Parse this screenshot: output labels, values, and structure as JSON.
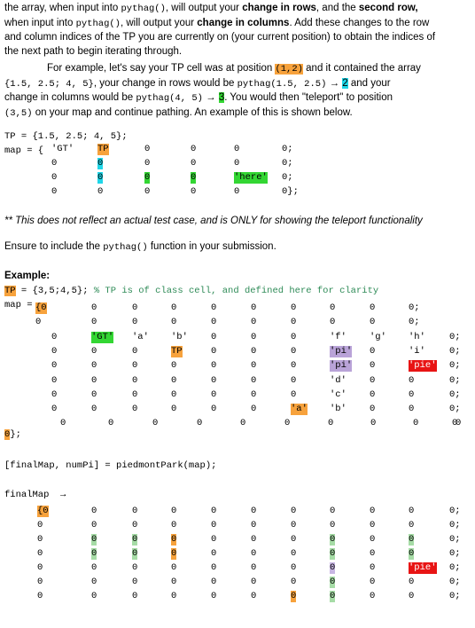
{
  "intro": {
    "line1a": "the array, when input into ",
    "line1b": "pythag()",
    "line1c": ", will output your ",
    "line1d": "change in rows",
    "line1e": ", and the ",
    "line1f": "second row,",
    "line2a": "when input into ",
    "line2b": "pythag()",
    "line2c": ", will output your ",
    "line2d": "change in columns",
    "line2e": ". Add these changes to the row",
    "line3": "and column indices of the TP you are currently on (your current position) to obtain the indices of",
    "line4": "the next path to begin iterating through."
  },
  "example_para": {
    "a": "For example, let's say your TP cell was at position ",
    "pos": "(1,2)",
    "b": " and it contained the array",
    "arr": "{1.5, 2.5; 4, 5}",
    "c": ", your change in rows would be ",
    "call1": "pythag(1.5, 2.5)",
    "arrow1": " → ",
    "r1": "2",
    "d": " and your",
    "e": "change in columns would be ",
    "call2": "pythag(4, 5)",
    "arrow2": " → ",
    "r2": "3",
    "f": ". You would then \"teleport\" to position",
    "newpos": "(3,5)",
    "g": " on your map and continue pathing. An example of this is shown below."
  },
  "code1": {
    "tp_line": "TP = {1.5, 2.5; 4, 5};",
    "map_prefix": "map = {",
    "rows": [
      [
        "'GT'",
        "TP",
        "0",
        "0",
        "0",
        "0;"
      ],
      [
        "0",
        "0",
        "0",
        "0",
        "0",
        "0;"
      ],
      [
        "0",
        "0",
        "0",
        "0",
        "'here'",
        "0;"
      ],
      [
        "0",
        "0",
        "0",
        "0",
        "0",
        "0};"
      ]
    ]
  },
  "note": "** This does not reflect an actual test case, and is ONLY for showing the teleport functionality",
  "ensure": {
    "a": "Ensure to include the ",
    "fn": "pythag()",
    "b": " function in your submission."
  },
  "example_label": "Example:",
  "code2": {
    "tp_prefix": "TP",
    "tp_rest": " = {3,5;4,5}; ",
    "comment": "% TP is of class cell, and defined here for clarity",
    "map_prefix": "map = ",
    "rows": [
      [
        "{0",
        "0",
        "0",
        "0",
        "0",
        "0",
        "0",
        "0",
        "0",
        "0;"
      ],
      [
        "0",
        "0",
        "0",
        "0",
        "0",
        "0",
        "0",
        "0",
        "0",
        "0;"
      ],
      [
        "0",
        "'GT'",
        "'a'",
        "'b'",
        "0",
        "0",
        "0",
        "'f'",
        "'g'",
        "'h'",
        "0;"
      ],
      [
        "0",
        "0",
        "0",
        "TP",
        "0",
        "0",
        "0",
        "'pi'",
        "0",
        "'i'",
        "0;"
      ],
      [
        "0",
        "0",
        "0",
        "0",
        "0",
        "0",
        "0",
        "'pi'",
        "0",
        "'pie'",
        "0;"
      ],
      [
        "0",
        "0",
        "0",
        "0",
        "0",
        "0",
        "0",
        "'d'",
        "0",
        "0",
        "0;"
      ],
      [
        "0",
        "0",
        "0",
        "0",
        "0",
        "0",
        "0",
        "'c'",
        "0",
        "0",
        "0;"
      ],
      [
        "0",
        "0",
        "0",
        "0",
        "0",
        "0",
        "'a'",
        "'b'",
        "0",
        "0",
        "0;"
      ],
      [
        "0",
        "0",
        "0",
        "0",
        "0",
        "0",
        "0",
        "0",
        "0",
        "0",
        "0"
      ]
    ],
    "close": "0};"
  },
  "call_line": "[finalMap, numPi] = piedmontPark(map);",
  "final_label": "finalMap  →",
  "final_rows": [
    [
      "{0",
      "0",
      "0",
      "0",
      "0",
      "0",
      "0",
      "0",
      "0",
      "0",
      "0;"
    ],
    [
      "0",
      "0",
      "0",
      "0",
      "0",
      "0",
      "0",
      "0",
      "0",
      "0",
      "0;"
    ],
    [
      "0",
      "0",
      "0",
      "0",
      "0",
      "0",
      "0",
      "0",
      "0",
      "0",
      "0;"
    ],
    [
      "0",
      "0",
      "0",
      "0",
      "0",
      "0",
      "0",
      "0",
      "0",
      "0",
      "0;"
    ],
    [
      "0",
      "0",
      "0",
      "0",
      "0",
      "0",
      "0",
      "0",
      "0",
      "'pie'",
      "0;"
    ],
    [
      "0",
      "0",
      "0",
      "0",
      "0",
      "0",
      "0",
      "0",
      "0",
      "0",
      "0;"
    ],
    [
      "0",
      "0",
      "0",
      "0",
      "0",
      "0",
      "0",
      "0",
      "0",
      "0",
      "0;"
    ]
  ]
}
